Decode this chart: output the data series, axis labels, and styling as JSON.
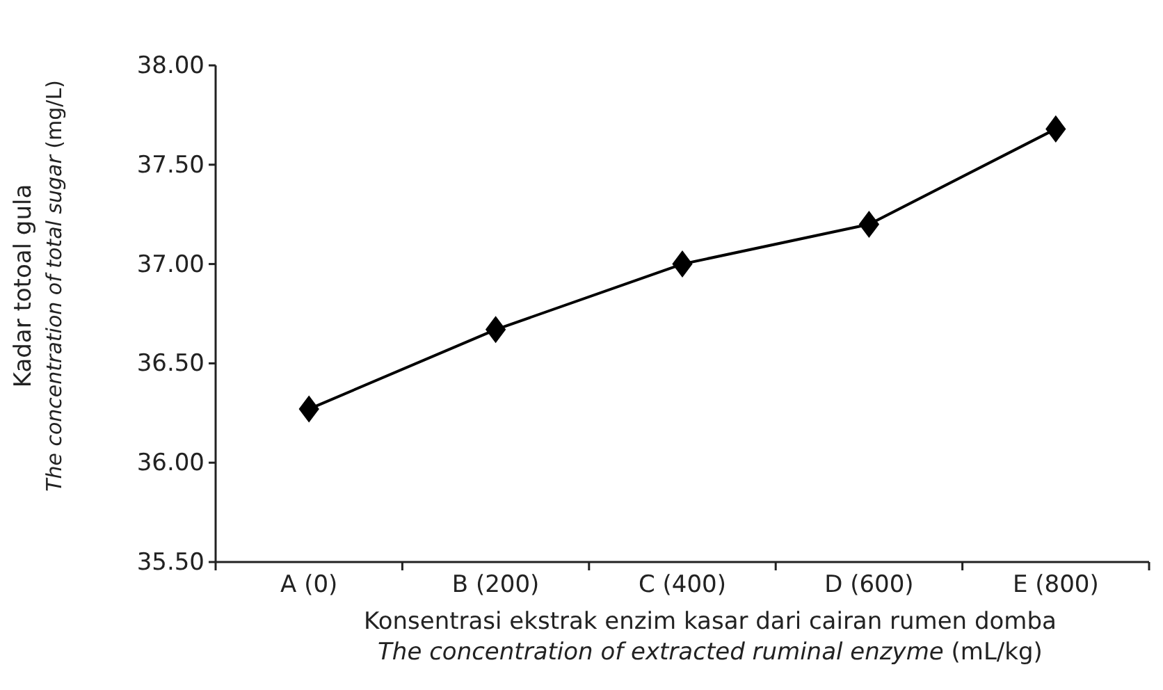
{
  "chart_data": {
    "type": "line",
    "categories": [
      "A (0)",
      "B (200)",
      "C (400)",
      "D (600)",
      "E (800)"
    ],
    "series": [
      {
        "color": "#000000",
        "values": [
          36.27,
          36.67,
          37.0,
          37.2,
          37.68
        ]
      }
    ],
    "xlabel": "Konsentrasi ekstrak enzim kasar dari cairan rumen domba\nThe concentration of extracted ruminal enzyme (mL/kg)",
    "ylabel": "Kadar totoal gula\nThe concentration of total sugar (mg/L)",
    "ylim": [
      35.5,
      38.0
    ],
    "yticks": [
      {
        "value": 35.5,
        "label": "35.50"
      },
      {
        "value": 36.0,
        "label": "36.00"
      },
      {
        "value": 36.5,
        "label": "36.50"
      },
      {
        "value": 37.0,
        "label": "37.00"
      },
      {
        "value": 37.5,
        "label": "37.50"
      },
      {
        "value": 38.0,
        "label": "38.00"
      }
    ],
    "marker": "diamond",
    "line_style": "solid",
    "grid": false
  }
}
